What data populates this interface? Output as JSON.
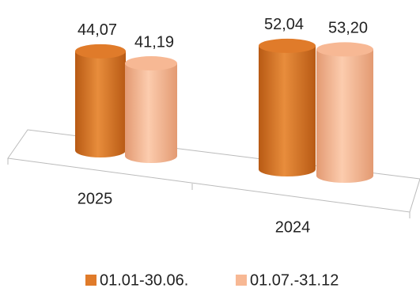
{
  "chart_data": {
    "type": "bar",
    "categories": [
      "2025",
      "2024"
    ],
    "series": [
      {
        "name": "01.01-30.06.",
        "color": "#e07b2a",
        "values": [
          44.07,
          52.04
        ],
        "value_labels": [
          "44,07",
          "52,04"
        ]
      },
      {
        "name": "01.07.-31.12",
        "color": "#f7b894",
        "values": [
          41.19,
          53.2
        ],
        "value_labels": [
          "41,19",
          "53,20"
        ]
      }
    ]
  }
}
